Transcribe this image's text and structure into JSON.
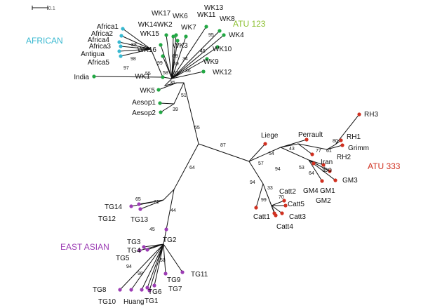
{
  "scale_label": "0.1",
  "groups": [
    {
      "label": "AFRICAN",
      "color": "#38b8d0"
    },
    {
      "label": "ATU 123",
      "color": "#8cc030"
    },
    {
      "label": "ATU 333",
      "color": "#d03020"
    },
    {
      "label": "EAST ASIAN",
      "color": "#9c3cb4"
    }
  ],
  "leaves": [
    "Africa1",
    "Africa2",
    "Africa4",
    "Africa3",
    "Antigua",
    "Africa5",
    "India",
    "WK1",
    "WK5",
    "WK16",
    "WK15",
    "WK14",
    "WK17",
    "WK2",
    "WK6",
    "WK3",
    "WK7",
    "WK11",
    "WK13",
    "WK8",
    "WK4",
    "WK10",
    "WK9",
    "WK12",
    "Aesop1",
    "Aesop2",
    "RH3",
    "Liege",
    "Perrault",
    "RH1",
    "Grimm",
    "RH2",
    "Iran",
    "Ibo",
    "GM3",
    "GM4",
    "GM1",
    "GM2",
    "Catt2",
    "Catt5",
    "Catt3",
    "Catt1",
    "Catt4",
    "TG14",
    "TG12",
    "TG13",
    "TG2",
    "TG3",
    "TG4",
    "TG5",
    "TG8",
    "TG10",
    "Huang",
    "TG1",
    "TG6",
    "TG7",
    "TG9",
    "TG11"
  ],
  "bootstrap": [
    "88",
    "98",
    "97",
    "55",
    "99",
    "58",
    "69",
    "59",
    "61",
    "95",
    "45",
    "34",
    "36",
    "35",
    "51",
    "39",
    "55",
    "87",
    "64",
    "71",
    "44",
    "65",
    "45",
    "43",
    "77",
    "80",
    "61",
    "54",
    "57",
    "94",
    "53",
    "64",
    "94",
    "33",
    "70",
    "99",
    "58",
    "94",
    "98"
  ]
}
